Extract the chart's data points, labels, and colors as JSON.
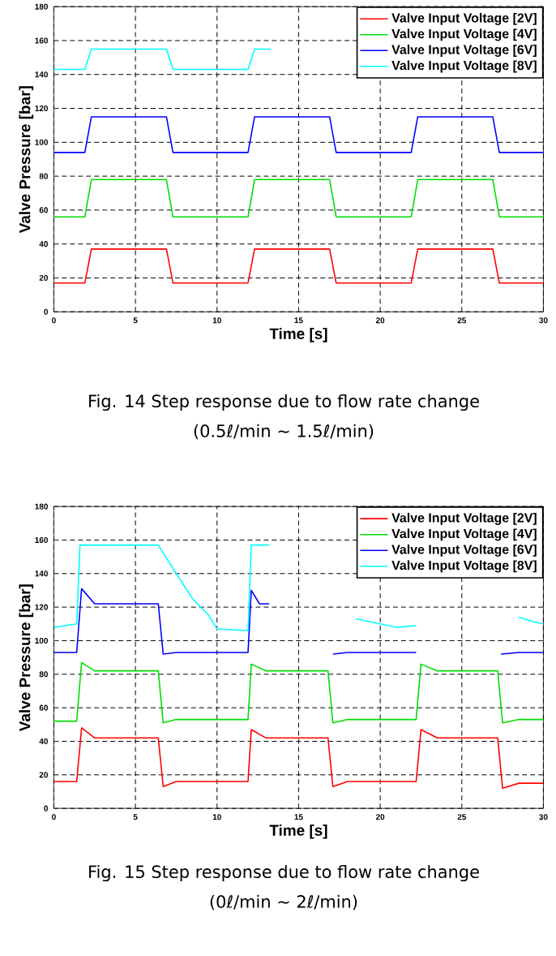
{
  "chart_data": [
    {
      "type": "line",
      "xlabel": "Time [s]",
      "ylabel": "Valve Pressure [bar]",
      "xlim": [
        0,
        30
      ],
      "xticks": [
        0,
        5,
        10,
        15,
        20,
        25,
        30
      ],
      "ylim": [
        0,
        180
      ],
      "yticks": [
        0,
        20,
        40,
        60,
        80,
        100,
        120,
        140,
        160,
        180
      ],
      "grid": true,
      "legend": "top right",
      "annotations": [
        "Fig. 14 Step response due to flow rate change",
        "(0.5ℓ/min ~ 1.5ℓ/min)"
      ],
      "x": [
        0,
        1.9,
        2.3,
        6.9,
        7.3,
        11.9,
        12.3,
        16.9,
        17.3,
        21.9,
        22.3,
        26.9,
        27.3,
        30
      ],
      "series": [
        {
          "name": "Valve Input Voltage [2V]",
          "color": "#ff0000",
          "values": [
            17,
            17,
            37,
            37,
            17,
            17,
            37,
            37,
            17,
            17,
            37,
            37,
            17,
            17
          ]
        },
        {
          "name": "Valve Input Voltage [4V]",
          "color": "#00dd00",
          "values": [
            56,
            56,
            78,
            78,
            56,
            56,
            78,
            78,
            56,
            56,
            78,
            78,
            56,
            56
          ]
        },
        {
          "name": "Valve Input Voltage [6V]",
          "color": "#0000ff",
          "values": [
            94,
            94,
            115,
            115,
            94,
            94,
            115,
            115,
            94,
            94,
            115,
            115,
            94,
            94
          ]
        },
        {
          "name": "Valve Input Voltage [8V]",
          "color": "#00ffff",
          "x": [
            0,
            1.9,
            2.3,
            6.9,
            7.3,
            11.9,
            12.3,
            13.3
          ],
          "values": [
            143,
            143,
            155,
            155,
            143,
            143,
            155,
            155
          ]
        }
      ]
    },
    {
      "type": "line",
      "xlabel": "Time [s]",
      "ylabel": "Valve Pressure [bar]",
      "xlim": [
        0,
        30
      ],
      "xticks": [
        0,
        5,
        10,
        15,
        20,
        25,
        30
      ],
      "ylim": [
        0,
        180
      ],
      "yticks": [
        0,
        20,
        40,
        60,
        80,
        100,
        120,
        140,
        160,
        180
      ],
      "grid": true,
      "legend": "top right",
      "annotations": [
        "Fig. 15 Step response due to flow rate change",
        "(0ℓ/min ~ 2ℓ/min)"
      ],
      "x": [
        0,
        1.4,
        1.7,
        2.5,
        6.4,
        6.7,
        7.5,
        11.9,
        12.1,
        13,
        16.8,
        17.1,
        18,
        22.2,
        22.5,
        23.5,
        27.2,
        27.5,
        28.5,
        30
      ],
      "series": [
        {
          "name": "Valve Input Voltage [2V]",
          "color": "#ff0000",
          "values": [
            16,
            16,
            48,
            42,
            42,
            13,
            16,
            16,
            47,
            42,
            42,
            13,
            16,
            16,
            47,
            42,
            42,
            12,
            15,
            15
          ]
        },
        {
          "name": "Valve Input Voltage [4V]",
          "color": "#00dd00",
          "values": [
            52,
            52,
            87,
            82,
            82,
            51,
            53,
            53,
            86,
            82,
            82,
            51,
            53,
            53,
            86,
            82,
            82,
            51,
            53,
            53
          ]
        },
        {
          "name": "Valve Input Voltage [6V]",
          "color": "#0000ff",
          "x": [
            0,
            1.4,
            1.7,
            2.5,
            6.4,
            6.7,
            7.5,
            11.9,
            12.1,
            12.6,
            13.2,
            16.9,
            17.1,
            18,
            22.2,
            22.3,
            27.4,
            28.5,
            30
          ],
          "values": [
            93,
            93,
            131,
            122,
            122,
            92,
            93,
            93,
            130,
            122,
            122,
            null,
            92,
            93,
            93,
            null,
            92,
            93,
            93
          ]
        },
        {
          "name": "Valve Input Voltage [8V]",
          "color": "#00ffff",
          "x": [
            0,
            1.4,
            1.6,
            6.4,
            7.5,
            8.5,
            9.5,
            10,
            11.9,
            12.1,
            13.2,
            16.9,
            18.5,
            20,
            21,
            22.2,
            27.3,
            28.5,
            29.5,
            30
          ],
          "values": [
            108,
            110,
            157,
            157,
            140,
            125,
            115,
            107,
            106,
            157,
            157,
            null,
            113,
            110,
            108,
            109,
            null,
            114,
            111,
            110
          ]
        }
      ]
    }
  ]
}
